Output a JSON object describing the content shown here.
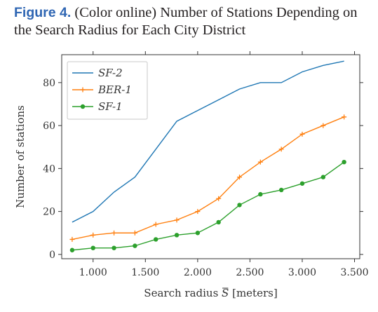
{
  "figure": {
    "label": "Figure 4.",
    "caption_line1": "(Color online) Number of Stations Depending on",
    "caption_line2": "the Search Radius for Each City District"
  },
  "chart_data": {
    "type": "line",
    "xlabel_prefix": "Search radius",
    "xlabel_symbol": "S",
    "xlabel_suffix": "[meters]",
    "ylabel": "Number of stations",
    "xlim": [
      0.7,
      3.55
    ],
    "ylim": [
      -2,
      93
    ],
    "xticks": [
      1.0,
      1.5,
      2.0,
      2.5,
      3.0,
      3.5
    ],
    "xtick_labels": [
      "1.000",
      "1.500",
      "2.000",
      "2.500",
      "3.000",
      "3.500"
    ],
    "yticks": [
      0,
      20,
      40,
      60,
      80
    ],
    "ytick_labels": [
      "0",
      "20",
      "40",
      "60",
      "80"
    ],
    "grid": false,
    "legend_position": "top-left",
    "series": [
      {
        "name": "SF-2",
        "color": "#1f77b4",
        "marker": "none",
        "x": [
          0.8,
          1.0,
          1.2,
          1.4,
          1.6,
          1.8,
          2.0,
          2.2,
          2.4,
          2.6,
          2.8,
          3.0,
          3.2,
          3.4
        ],
        "values": [
          15,
          20,
          29,
          36,
          49,
          62,
          67,
          72,
          77,
          80,
          80,
          85,
          88,
          90
        ]
      },
      {
        "name": "BER-1",
        "color": "#ff7f0e",
        "marker": "plus",
        "x": [
          0.8,
          1.0,
          1.2,
          1.4,
          1.6,
          1.8,
          2.0,
          2.2,
          2.4,
          2.6,
          2.8,
          3.0,
          3.2,
          3.4
        ],
        "values": [
          7,
          9,
          10,
          10,
          14,
          16,
          20,
          26,
          36,
          43,
          49,
          56,
          60,
          64
        ]
      },
      {
        "name": "SF-1",
        "color": "#2ca02c",
        "marker": "circle",
        "x": [
          0.8,
          1.0,
          1.2,
          1.4,
          1.6,
          1.8,
          2.0,
          2.2,
          2.4,
          2.6,
          2.8,
          3.0,
          3.2,
          3.4
        ],
        "values": [
          2,
          3,
          3,
          4,
          7,
          9,
          10,
          15,
          23,
          28,
          30,
          33,
          36,
          43
        ]
      }
    ]
  }
}
